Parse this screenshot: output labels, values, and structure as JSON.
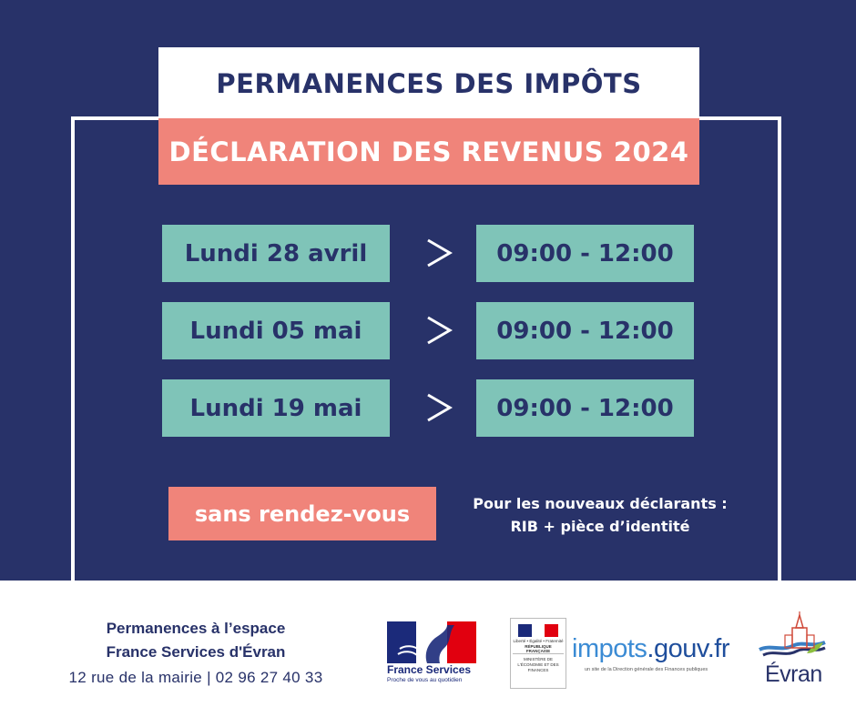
{
  "poster": {
    "title": "PERMANENCES DES IMPÔTS",
    "subtitle": "DÉCLARATION DES REVENUS 2024",
    "sessions": [
      {
        "date": "Lundi 28 avril",
        "time": "09:00 - 12:00"
      },
      {
        "date": "Lundi 05 mai",
        "time": "09:00 - 12:00"
      },
      {
        "date": "Lundi 19 mai",
        "time": "09:00 - 12:00"
      }
    ],
    "no_appointment": "sans rendez-vous",
    "note_line1": "Pour les nouveaux déclarants :",
    "note_line2": "RIB + pièce d’identité"
  },
  "footer": {
    "line1": "Permanences à l’espace",
    "line2": "France Services d'Évran",
    "line3": "12 rue de la mairie  |  02 96 27 40 33",
    "logos": {
      "france_services_name": "France Services",
      "france_services_tagline": "Proche de vous au quotidien",
      "ministry_motto": "Liberté • Égalité • Fraternité",
      "ministry_republic": "RÉPUBLIQUE FRANÇAISE",
      "ministry_name": "MINISTÈRE DE L'ÉCONOMIE ET DES FINANCES",
      "impots_brand_prefix": "impots",
      "impots_brand_suffix": ".gouv.fr",
      "impots_tagline": "un site de la Direction générale des Finances publiques",
      "evran_name": "Évran"
    }
  },
  "colors": {
    "navy": "#283269",
    "salmon": "#f0847a",
    "teal": "#7fc4b8",
    "white": "#ffffff"
  }
}
